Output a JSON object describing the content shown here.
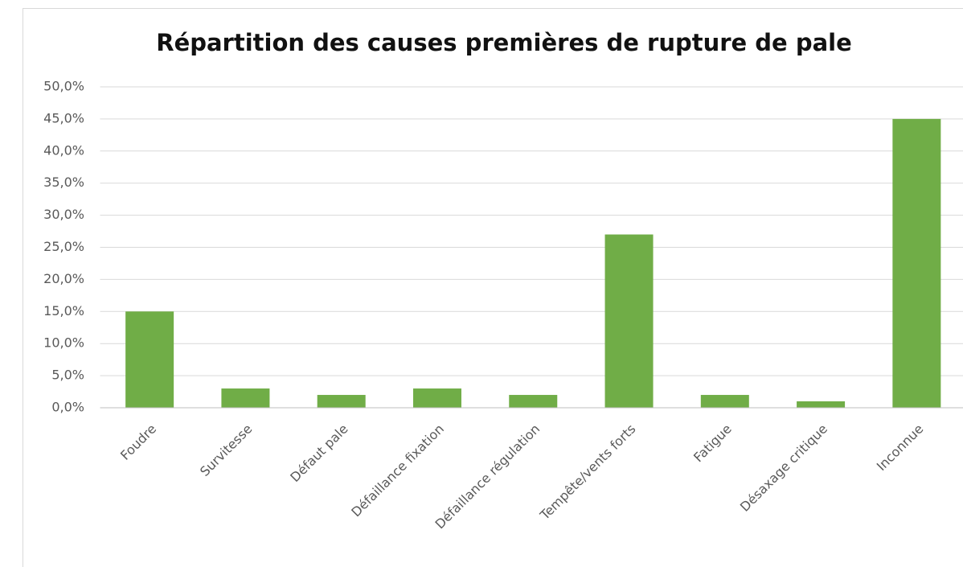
{
  "chart_data": {
    "type": "bar",
    "title": "Répartition des causes premières de rupture de pale",
    "categories": [
      "Foudre",
      "Survitesse",
      "Défaut pale",
      "Défaillance fixation",
      "Défaillance régulation",
      "Tempête/vents forts",
      "Fatigue",
      "Désaxage critique",
      "Inconnue"
    ],
    "values": [
      15,
      3,
      2,
      3,
      2,
      27,
      2,
      1,
      45
    ],
    "color": "#70ad47",
    "ylim": [
      0,
      50
    ],
    "yticks": [
      {
        "value": 0,
        "label": "0,0%"
      },
      {
        "value": 5,
        "label": "5,0%"
      },
      {
        "value": 10,
        "label": "10,0%"
      },
      {
        "value": 15,
        "label": "15,0%"
      },
      {
        "value": 20,
        "label": "20,0%"
      },
      {
        "value": 25,
        "label": "25,0%"
      },
      {
        "value": 30,
        "label": "30,0%"
      },
      {
        "value": 35,
        "label": "35,0%"
      },
      {
        "value": 40,
        "label": "40,0%"
      },
      {
        "value": 45,
        "label": "45,0%"
      },
      {
        "value": 50,
        "label": "50,0%"
      }
    ],
    "grid": true
  }
}
